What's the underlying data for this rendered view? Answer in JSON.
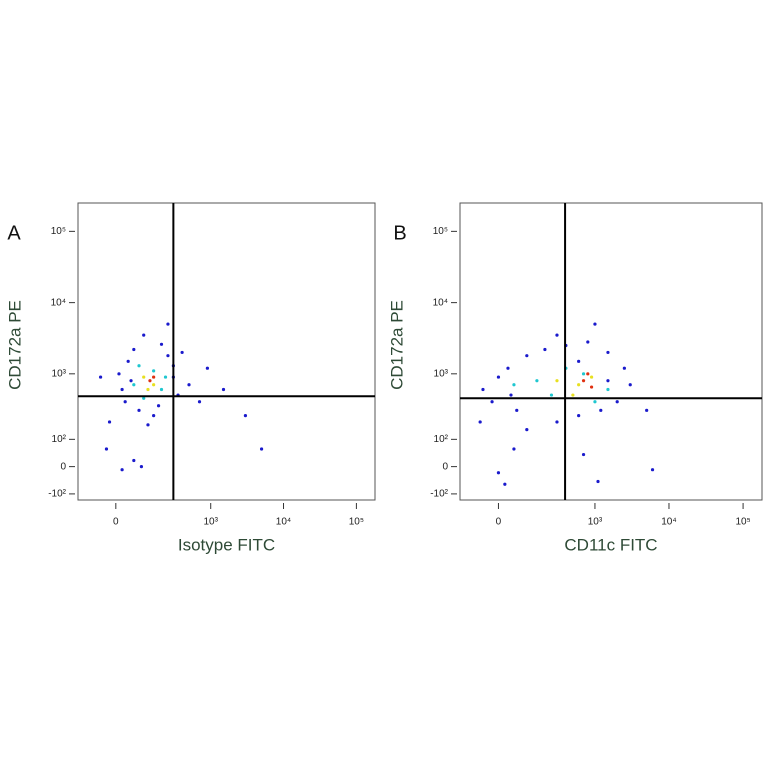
{
  "chart_data": [
    {
      "type": "scatter",
      "panel_label": "A",
      "xlabel": "Isotype FITC",
      "ylabel": "CD172a PE",
      "scale": "biexponential",
      "xlim": [
        -150,
        180000
      ],
      "ylim": [
        -130,
        250000
      ],
      "xticks": [
        0,
        {
          "value": 1000,
          "label": "10³"
        },
        {
          "value": 10000,
          "label": "10⁴"
        },
        {
          "value": 100000,
          "label": "10⁵"
        }
      ],
      "yticks": [
        {
          "value": -100,
          "label": "-10²"
        },
        0,
        {
          "value": 100,
          "label": "10²"
        },
        {
          "value": 1000,
          "label": "10³"
        },
        {
          "value": 10000,
          "label": "10⁴"
        },
        {
          "value": 100000,
          "label": "10⁵"
        }
      ],
      "gates": {
        "x": 300,
        "y": 480
      },
      "series": [
        {
          "color": "#1a1acc",
          "x": [
            20,
            40,
            60,
            250,
            300,
            350,
            80,
            150,
            30,
            500,
            200,
            10,
            120,
            -30,
            20,
            60,
            90,
            700,
            1500,
            3000,
            5000,
            900,
            400,
            100,
            250,
            -50,
            180,
            50,
            300,
            -20
          ],
          "y": [
            600,
            1500,
            2200,
            1800,
            900,
            500,
            300,
            250,
            400,
            700,
            2600,
            1000,
            180,
            60,
            -10,
            20,
            0,
            400,
            600,
            250,
            60,
            1200,
            2000,
            3500,
            5000,
            900,
            350,
            800,
            1300,
            200
          ]
        },
        {
          "color": "#1fc7d0",
          "x": [
            60,
            150,
            200,
            80,
            100,
            230
          ],
          "y": [
            700,
            1100,
            600,
            1300,
            450,
            900
          ]
        },
        {
          "color": "#e8e020",
          "x": [
            100,
            150,
            120
          ],
          "y": [
            900,
            700,
            600
          ]
        },
        {
          "color": "#e03010",
          "x": [
            130,
            150
          ],
          "y": [
            800,
            900
          ]
        }
      ]
    },
    {
      "type": "scatter",
      "panel_label": "B",
      "xlabel": "CD11c FITC",
      "ylabel": "CD172a PE",
      "scale": "biexponential",
      "xlim": [
        -150,
        180000
      ],
      "ylim": [
        -130,
        250000
      ],
      "xticks": [
        0,
        {
          "value": 1000,
          "label": "10³"
        },
        {
          "value": 10000,
          "label": "10⁴"
        },
        {
          "value": 100000,
          "label": "10⁵"
        }
      ],
      "yticks": [
        {
          "value": -100,
          "label": "-10²"
        },
        0,
        {
          "value": 100,
          "label": "10²"
        },
        {
          "value": 1000,
          "label": "10³"
        },
        {
          "value": 10000,
          "label": "10⁴"
        },
        {
          "value": 100000,
          "label": "10⁵"
        }
      ],
      "gates": {
        "x": 390,
        "y": 450
      },
      "series": [
        {
          "color": "#1a1acc",
          "x": [
            -50,
            -20,
            0,
            30,
            60,
            100,
            200,
            400,
            800,
            1500,
            2500,
            3000,
            2000,
            1200,
            600,
            300,
            100,
            0,
            20,
            50,
            700,
            1100,
            5000,
            6000,
            1000,
            300,
            -60,
            1500,
            40,
            600
          ],
          "y": [
            600,
            400,
            900,
            1200,
            300,
            1800,
            2200,
            2500,
            2800,
            2000,
            1200,
            700,
            400,
            300,
            250,
            200,
            150,
            -20,
            -60,
            60,
            40,
            -50,
            300,
            -10,
            5000,
            3500,
            200,
            800,
            500,
            1500
          ]
        },
        {
          "color": "#1fc7d0",
          "x": [
            50,
            150,
            250,
            400,
            700,
            1500,
            1000
          ],
          "y": [
            700,
            800,
            500,
            1200,
            1000,
            600,
            400
          ]
        },
        {
          "color": "#e8e020",
          "x": [
            300,
            600,
            900,
            500
          ],
          "y": [
            800,
            700,
            900,
            500
          ]
        },
        {
          "color": "#e03010",
          "x": [
            700,
            900,
            800
          ],
          "y": [
            800,
            650,
            1000
          ]
        }
      ]
    }
  ]
}
